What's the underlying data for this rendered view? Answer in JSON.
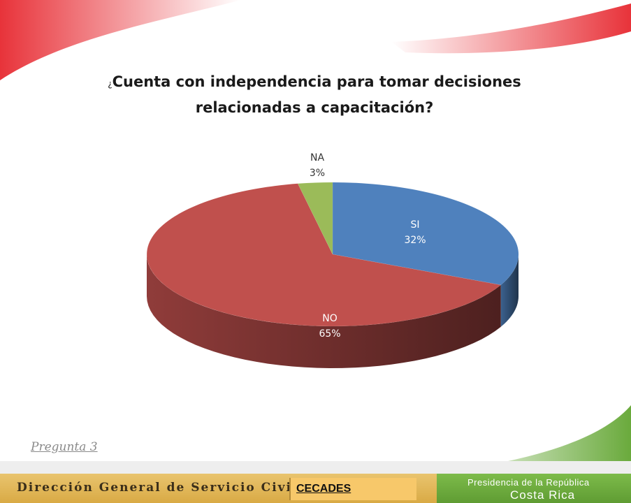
{
  "slide": {
    "title_prefix": "¿",
    "title_main": "Cuenta con independencia para tomar decisiones",
    "title_line2": "relacionadas a capacitación?",
    "question_label": "Pregunta 3"
  },
  "footer": {
    "left_text": "Dirección General de Servicio Civil",
    "badge": "CECADES",
    "right_line1": "Presidencia de la República",
    "right_line2": "Costa Rica"
  },
  "colors": {
    "si": "#4f81bd",
    "no": "#c0504d",
    "na": "#9bbb59",
    "accent_red": "#e8333a",
    "footer_gold": "#e0b85a",
    "footer_green": "#6aaa3c"
  },
  "chart_data": {
    "type": "pie",
    "style": "3d",
    "title": "¿Cuenta con independencia para tomar decisiones relacionadas a capacitación?",
    "categories": [
      "SI",
      "NO",
      "NA"
    ],
    "values": [
      32,
      65,
      3
    ],
    "labels": [
      {
        "name": "SI",
        "value": "32%"
      },
      {
        "name": "NO",
        "value": "65%"
      },
      {
        "name": "NA",
        "value": "3%"
      }
    ],
    "legend": "none"
  }
}
